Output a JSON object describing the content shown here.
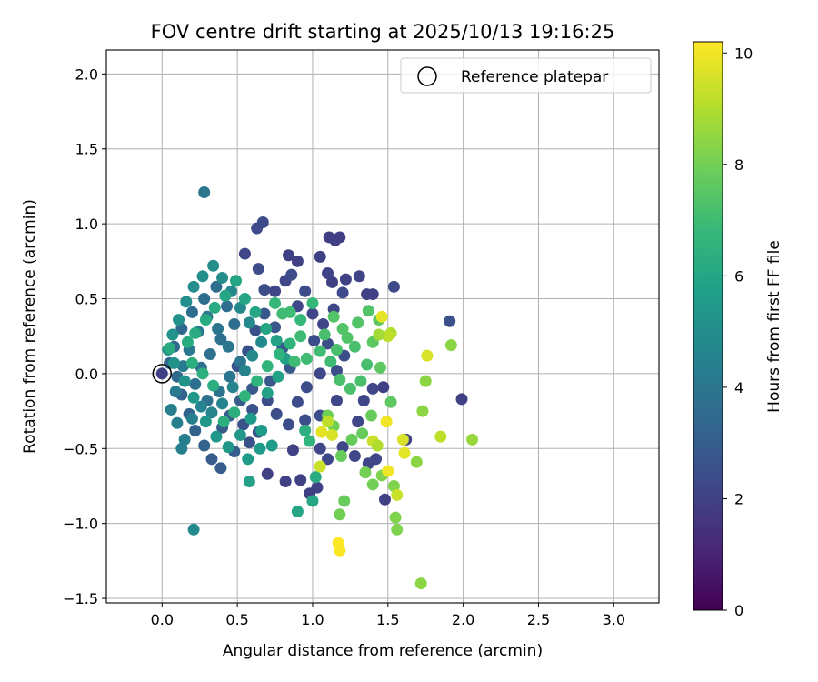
{
  "chart_data": {
    "type": "scatter",
    "title": "FOV centre drift starting at 2025/10/13 19:16:25",
    "xlabel": "Angular distance from reference (arcmin)",
    "ylabel": "Rotation from reference (arcmin)",
    "xlim": [
      -0.37,
      3.3
    ],
    "ylim": [
      -1.53,
      2.16
    ],
    "xticks": [
      "0.0",
      "0.5",
      "1.0",
      "1.5",
      "2.0",
      "2.5",
      "3.0"
    ],
    "xtick_values": [
      0,
      0.5,
      1.0,
      1.5,
      2.0,
      2.5,
      3.0
    ],
    "yticks": [
      "−1.5",
      "−1.0",
      "−0.5",
      "0.0",
      "0.5",
      "1.0",
      "1.5",
      "2.0"
    ],
    "ytick_values": [
      -1.5,
      -1.0,
      -0.5,
      0.0,
      0.5,
      1.0,
      1.5,
      2.0
    ],
    "grid": true,
    "legend": {
      "position": "upper right",
      "entries": [
        "Reference platepar"
      ]
    },
    "reference_point": {
      "x": 0.0,
      "y": 0.0
    },
    "colorbar": {
      "label": "Hours from first FF file",
      "range": [
        0,
        10.2
      ],
      "ticks": [
        "0",
        "2",
        "4",
        "6",
        "8",
        "10"
      ],
      "tick_values": [
        0,
        2,
        4,
        6,
        8,
        10
      ],
      "colormap": "viridis"
    },
    "points": [
      [
        0.0,
        0.0,
        2.0
      ],
      [
        0.28,
        1.21,
        4.0
      ],
      [
        0.21,
        -1.04,
        4.8
      ],
      [
        0.67,
        1.01,
        2.4
      ],
      [
        0.63,
        0.97,
        2.3
      ],
      [
        0.55,
        0.8,
        2.2
      ],
      [
        0.84,
        0.79,
        2.0
      ],
      [
        0.9,
        0.75,
        2.0
      ],
      [
        1.05,
        0.78,
        2.0
      ],
      [
        1.11,
        0.91,
        1.9
      ],
      [
        1.15,
        0.89,
        2.0
      ],
      [
        1.18,
        0.91,
        1.9
      ],
      [
        1.1,
        0.67,
        2.1
      ],
      [
        1.22,
        0.63,
        2.0
      ],
      [
        1.31,
        0.65,
        2.1
      ],
      [
        1.36,
        0.53,
        2.0
      ],
      [
        1.4,
        0.53,
        2.0
      ],
      [
        1.54,
        0.58,
        2.3
      ],
      [
        1.2,
        0.54,
        2.3
      ],
      [
        1.13,
        0.61,
        2.0
      ],
      [
        1.91,
        0.35,
        2.5
      ],
      [
        1.99,
        -0.17,
        2.0
      ],
      [
        1.47,
        -0.09,
        2.0
      ],
      [
        1.48,
        -0.84,
        2.0
      ],
      [
        1.62,
        -0.44,
        2.0
      ],
      [
        0.92,
        -0.71,
        2.0
      ],
      [
        0.98,
        -0.8,
        2.0
      ],
      [
        1.03,
        -0.76,
        2.0
      ],
      [
        0.82,
        -0.72,
        2.0
      ],
      [
        0.7,
        -0.67,
        2.0
      ],
      [
        0.87,
        -0.51,
        2.0
      ],
      [
        1.05,
        -0.5,
        2.2
      ],
      [
        1.1,
        -0.57,
        2.2
      ],
      [
        1.2,
        -0.49,
        2.2
      ],
      [
        1.28,
        -0.55,
        2.2
      ],
      [
        1.37,
        -0.6,
        2.2
      ],
      [
        1.42,
        -0.57,
        2.2
      ],
      [
        1.34,
        -0.18,
        2.2
      ],
      [
        1.4,
        -0.1,
        2.2
      ],
      [
        1.3,
        -0.32,
        2.2
      ],
      [
        0.82,
        0.62,
        2.2
      ],
      [
        0.75,
        0.55,
        2.2
      ],
      [
        0.68,
        0.56,
        2.4
      ],
      [
        0.64,
        0.7,
        2.4
      ],
      [
        0.86,
        0.66,
        2.4
      ],
      [
        0.95,
        0.55,
        2.4
      ],
      [
        0.9,
        0.45,
        2.2
      ],
      [
        1.0,
        0.4,
        2.2
      ],
      [
        1.07,
        0.33,
        2.2
      ],
      [
        1.14,
        0.43,
        2.2
      ],
      [
        1.01,
        0.22,
        2.4
      ],
      [
        1.1,
        0.2,
        2.4
      ],
      [
        1.21,
        0.12,
        2.4
      ],
      [
        1.16,
        0.02,
        2.4
      ],
      [
        1.05,
        0.0,
        2.2
      ],
      [
        0.96,
        -0.09,
        2.4
      ],
      [
        0.9,
        -0.19,
        2.4
      ],
      [
        0.95,
        -0.31,
        2.4
      ],
      [
        1.05,
        -0.28,
        2.4
      ],
      [
        1.16,
        -0.18,
        2.2
      ],
      [
        0.84,
        -0.34,
        2.4
      ],
      [
        0.76,
        -0.27,
        2.4
      ],
      [
        0.7,
        -0.18,
        2.4
      ],
      [
        0.6,
        -0.24,
        2.6
      ],
      [
        0.54,
        -0.34,
        2.6
      ],
      [
        0.58,
        -0.46,
        2.6
      ],
      [
        0.64,
        -0.39,
        2.6
      ],
      [
        0.5,
        0.05,
        2.6
      ],
      [
        0.57,
        0.15,
        2.6
      ],
      [
        0.62,
        0.29,
        2.6
      ],
      [
        0.68,
        0.4,
        2.8
      ],
      [
        0.75,
        0.31,
        2.8
      ],
      [
        0.8,
        0.17,
        2.8
      ],
      [
        0.85,
        0.04,
        2.8
      ],
      [
        0.72,
        -0.05,
        2.8
      ],
      [
        0.6,
        -0.1,
        2.8
      ],
      [
        0.52,
        -0.18,
        3.0
      ],
      [
        0.45,
        -0.28,
        3.0
      ],
      [
        0.4,
        -0.36,
        3.0
      ],
      [
        0.48,
        -0.52,
        3.0
      ],
      [
        0.39,
        -0.63,
        3.0
      ],
      [
        0.33,
        -0.57,
        3.0
      ],
      [
        0.28,
        -0.48,
        3.2
      ],
      [
        0.22,
        -0.38,
        3.2
      ],
      [
        0.18,
        -0.27,
        3.2
      ],
      [
        0.13,
        -0.14,
        3.2
      ],
      [
        0.1,
        -0.02,
        3.4
      ],
      [
        0.05,
        0.07,
        3.4
      ],
      [
        0.08,
        0.18,
        3.4
      ],
      [
        0.13,
        0.3,
        3.4
      ],
      [
        0.2,
        0.41,
        3.6
      ],
      [
        0.28,
        0.5,
        3.6
      ],
      [
        0.36,
        0.58,
        3.6
      ],
      [
        0.43,
        0.45,
        3.6
      ],
      [
        0.48,
        0.33,
        3.6
      ],
      [
        0.39,
        0.23,
        3.8
      ],
      [
        0.32,
        0.13,
        3.8
      ],
      [
        0.26,
        0.04,
        3.8
      ],
      [
        0.22,
        -0.07,
        3.8
      ],
      [
        0.3,
        -0.18,
        3.8
      ],
      [
        0.38,
        -0.12,
        4.0
      ],
      [
        0.45,
        -0.02,
        4.0
      ],
      [
        0.52,
        0.08,
        4.0
      ],
      [
        0.44,
        0.18,
        4.0
      ],
      [
        0.37,
        0.3,
        4.0
      ],
      [
        0.3,
        0.38,
        4.2
      ],
      [
        0.24,
        0.28,
        4.2
      ],
      [
        0.18,
        0.16,
        4.2
      ],
      [
        0.14,
        0.05,
        4.2
      ],
      [
        0.09,
        -0.12,
        4.2
      ],
      [
        0.06,
        -0.24,
        4.4
      ],
      [
        0.1,
        -0.33,
        4.4
      ],
      [
        0.15,
        -0.44,
        4.4
      ],
      [
        0.13,
        -0.5,
        4.4
      ],
      [
        0.2,
        -0.3,
        4.4
      ],
      [
        0.26,
        -0.22,
        4.6
      ],
      [
        0.33,
        -0.26,
        4.6
      ],
      [
        0.4,
        -0.2,
        4.6
      ],
      [
        0.47,
        -0.09,
        4.6
      ],
      [
        0.55,
        0.02,
        4.6
      ],
      [
        0.6,
        0.12,
        4.8
      ],
      [
        0.66,
        0.21,
        4.8
      ],
      [
        0.58,
        0.34,
        4.8
      ],
      [
        0.52,
        0.44,
        4.8
      ],
      [
        0.46,
        0.55,
        4.8
      ],
      [
        0.4,
        0.64,
        5.0
      ],
      [
        0.34,
        0.72,
        5.0
      ],
      [
        0.27,
        0.65,
        5.0
      ],
      [
        0.21,
        0.58,
        5.0
      ],
      [
        0.16,
        0.48,
        5.0
      ],
      [
        0.11,
        0.36,
        5.2
      ],
      [
        0.07,
        0.26,
        5.2
      ],
      [
        0.04,
        0.16,
        5.2
      ],
      [
        0.08,
        0.07,
        5.2
      ],
      [
        0.15,
        -0.05,
        5.2
      ],
      [
        0.21,
        -0.16,
        5.4
      ],
      [
        0.29,
        -0.32,
        5.4
      ],
      [
        0.36,
        -0.42,
        5.4
      ],
      [
        0.44,
        -0.49,
        5.4
      ],
      [
        0.52,
        -0.41,
        5.4
      ],
      [
        0.59,
        -0.3,
        5.6
      ],
      [
        0.66,
        -0.38,
        5.6
      ],
      [
        0.73,
        -0.48,
        5.6
      ],
      [
        0.57,
        -0.57,
        5.6
      ],
      [
        0.65,
        -0.5,
        5.6
      ],
      [
        0.58,
        -0.72,
        5.8
      ],
      [
        0.7,
        -0.13,
        5.8
      ],
      [
        0.77,
        -0.02,
        5.8
      ],
      [
        0.82,
        0.1,
        5.8
      ],
      [
        0.76,
        0.22,
        5.8
      ],
      [
        0.69,
        0.3,
        6.0
      ],
      [
        0.62,
        0.41,
        6.0
      ],
      [
        0.55,
        0.5,
        6.0
      ],
      [
        0.49,
        0.62,
        6.0
      ],
      [
        0.42,
        0.52,
        6.0
      ],
      [
        0.35,
        0.44,
        6.2
      ],
      [
        0.29,
        0.36,
        6.2
      ],
      [
        0.22,
        0.27,
        6.2
      ],
      [
        0.17,
        0.21,
        6.2
      ],
      [
        0.05,
        0.17,
        6.2
      ],
      [
        0.2,
        0.07,
        6.4
      ],
      [
        0.27,
        0.0,
        6.4
      ],
      [
        0.34,
        -0.08,
        6.4
      ],
      [
        0.41,
        -0.32,
        6.4
      ],
      [
        0.48,
        -0.26,
        6.4
      ],
      [
        0.55,
        -0.15,
        6.6
      ],
      [
        0.63,
        -0.05,
        6.6
      ],
      [
        0.7,
        0.05,
        6.6
      ],
      [
        0.78,
        0.13,
        6.6
      ],
      [
        0.85,
        0.2,
        6.6
      ],
      [
        0.92,
        0.36,
        6.8
      ],
      [
        1.0,
        0.47,
        6.8
      ],
      [
        0.9,
        -0.92,
        6.0
      ],
      [
        1.0,
        -0.85,
        6.0
      ],
      [
        1.02,
        -0.69,
        6.2
      ],
      [
        0.95,
        -0.38,
        6.4
      ],
      [
        0.98,
        -0.45,
        6.6
      ],
      [
        0.85,
        0.41,
        7.0
      ],
      [
        0.8,
        0.4,
        7.0
      ],
      [
        0.75,
        0.47,
        6.8
      ],
      [
        0.92,
        0.25,
        7.0
      ],
      [
        0.88,
        0.08,
        7.0
      ],
      [
        0.96,
        0.1,
        7.0
      ],
      [
        1.05,
        0.15,
        7.0
      ],
      [
        1.12,
        0.08,
        7.0
      ],
      [
        1.18,
        -0.04,
        7.2
      ],
      [
        1.25,
        -0.1,
        7.2
      ],
      [
        1.32,
        -0.05,
        7.2
      ],
      [
        1.36,
        0.06,
        7.2
      ],
      [
        1.28,
        0.18,
        7.2
      ],
      [
        1.2,
        0.3,
        7.4
      ],
      [
        1.14,
        0.38,
        7.4
      ],
      [
        1.08,
        0.26,
        7.2
      ],
      [
        1.16,
        0.16,
        7.2
      ],
      [
        1.23,
        0.24,
        7.4
      ],
      [
        1.3,
        0.34,
        7.4
      ],
      [
        1.37,
        0.42,
        7.4
      ],
      [
        1.44,
        0.36,
        7.6
      ],
      [
        1.4,
        0.21,
        7.6
      ],
      [
        1.45,
        0.04,
        7.6
      ],
      [
        1.52,
        -0.19,
        7.6
      ],
      [
        1.39,
        -0.28,
        7.8
      ],
      [
        1.33,
        -0.4,
        7.8
      ],
      [
        1.26,
        -0.44,
        7.8
      ],
      [
        1.19,
        -0.55,
        7.8
      ],
      [
        1.21,
        -0.85,
        7.8
      ],
      [
        1.18,
        -0.94,
        8.0
      ],
      [
        1.14,
        -0.35,
        8.0
      ],
      [
        1.1,
        -0.28,
        8.0
      ],
      [
        1.35,
        -0.66,
        8.0
      ],
      [
        1.4,
        -0.74,
        8.0
      ],
      [
        1.46,
        -0.68,
        8.2
      ],
      [
        1.54,
        -0.75,
        8.2
      ],
      [
        1.55,
        -0.96,
        8.2
      ],
      [
        1.56,
        -1.04,
        8.2
      ],
      [
        1.72,
        -1.4,
        8.4
      ],
      [
        1.69,
        -0.59,
        8.4
      ],
      [
        1.73,
        -0.25,
        8.4
      ],
      [
        1.75,
        -0.05,
        8.4
      ],
      [
        1.92,
        0.19,
        8.4
      ],
      [
        2.06,
        -0.44,
        8.6
      ],
      [
        1.85,
        -0.42,
        9.2
      ],
      [
        1.76,
        0.12,
        9.6
      ],
      [
        1.52,
        0.27,
        9.0
      ],
      [
        1.5,
        0.25,
        9.2
      ],
      [
        1.46,
        0.38,
        9.8
      ],
      [
        1.6,
        -0.44,
        9.6
      ],
      [
        1.61,
        -0.53,
        9.8
      ],
      [
        1.5,
        -0.65,
        10.0
      ],
      [
        1.49,
        -0.32,
        10.0
      ],
      [
        1.17,
        -1.13,
        10.2
      ],
      [
        1.18,
        -1.18,
        10.2
      ],
      [
        1.05,
        -0.62,
        9.4
      ],
      [
        1.06,
        -0.39,
        9.8
      ],
      [
        1.13,
        -0.41,
        9.6
      ],
      [
        1.1,
        -0.32,
        9.2
      ],
      [
        1.4,
        -0.45,
        9.4
      ],
      [
        1.43,
        -0.48,
        9.0
      ],
      [
        1.56,
        -0.81,
        9.4
      ],
      [
        1.44,
        0.26,
        8.8
      ]
    ]
  }
}
